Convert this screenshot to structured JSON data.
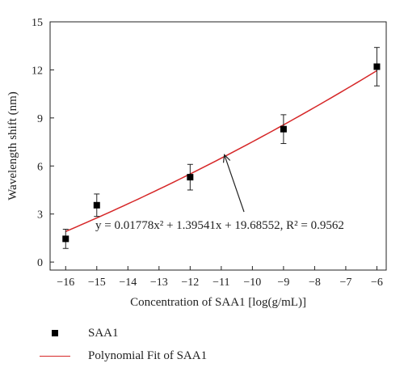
{
  "chart_data": {
    "type": "scatter",
    "xlabel": "Concentration of SAA1 [log(g/mL)]",
    "ylabel": "Wavelength shift (nm)",
    "xlim": [
      -16.5,
      -5.7
    ],
    "ylim": [
      -0.5,
      15
    ],
    "x_ticks": [
      -16,
      -15,
      -14,
      -13,
      -12,
      -11,
      -10,
      -9,
      -8,
      -7,
      -6
    ],
    "y_ticks": [
      0,
      3,
      6,
      9,
      12,
      15
    ],
    "grid": false,
    "legend_position": "below",
    "series": [
      {
        "name": "SAA1",
        "kind": "scatter",
        "marker": "square",
        "color": "#000000",
        "x": [
          -16,
          -15,
          -12,
          -9,
          -6
        ],
        "y": [
          1.45,
          3.55,
          5.3,
          8.3,
          12.2
        ],
        "error": [
          0.6,
          0.7,
          0.8,
          0.9,
          1.2
        ]
      },
      {
        "name": "Polynomial Fit of SAA1",
        "kind": "line",
        "color": "#d62728",
        "x_range": [
          -16,
          -6
        ],
        "coefficients": {
          "a": 0.01778,
          "b": 1.39541,
          "c": 19.68552
        }
      }
    ],
    "annotation": {
      "text": "y = 0.01778x² + 1.39541x + 19.68552, R² = 0.9562",
      "arrow_tip": {
        "x": -10.9,
        "y": 6.7
      }
    }
  }
}
